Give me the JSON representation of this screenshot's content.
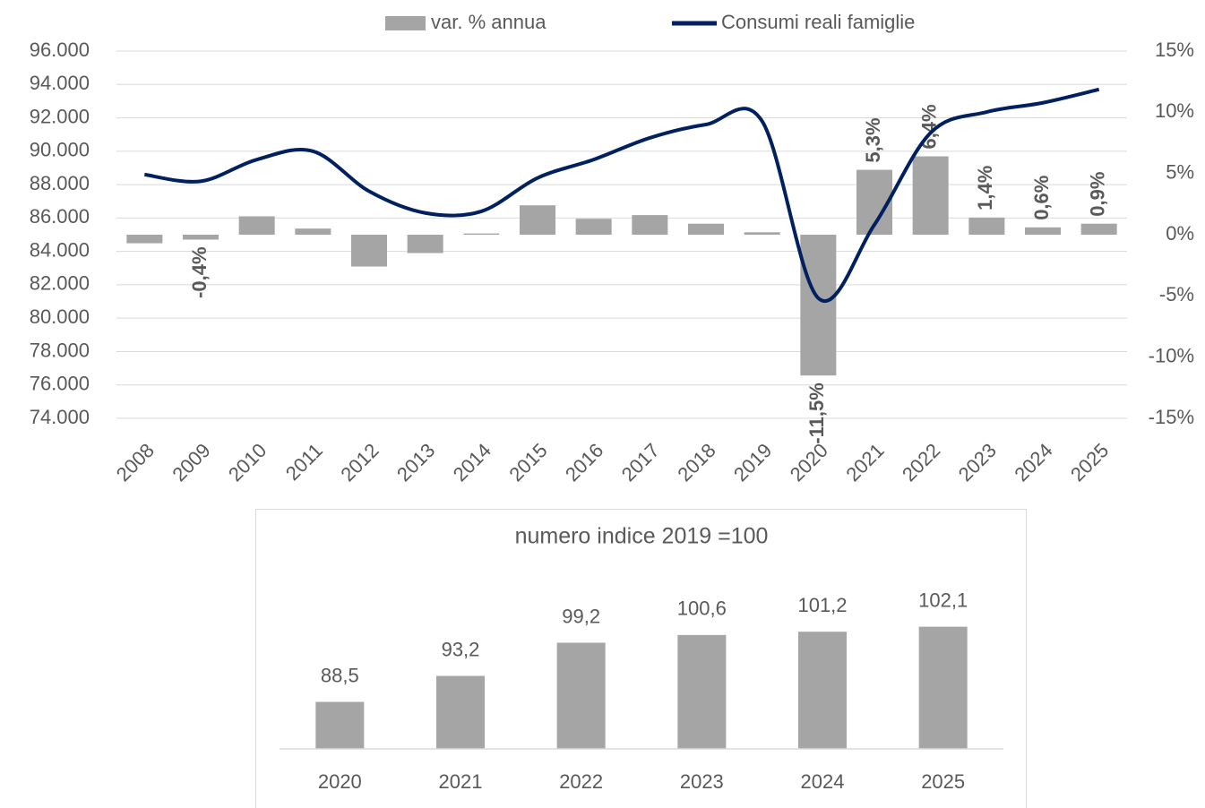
{
  "chart_data": [
    {
      "type": "combo",
      "categories": [
        "2008",
        "2009",
        "2010",
        "2011",
        "2012",
        "2013",
        "2014",
        "2015",
        "2016",
        "2017",
        "2018",
        "2019",
        "2020",
        "2021",
        "2022",
        "2023",
        "2024",
        "2025"
      ],
      "series": [
        {
          "name": "var. % annua",
          "type": "bar",
          "axis": "y2",
          "color": "#a5a5a5",
          "values": [
            -0.7,
            -0.4,
            1.5,
            0.5,
            -2.6,
            -1.5,
            0.1,
            2.4,
            1.3,
            1.6,
            0.9,
            0.2,
            -11.5,
            5.3,
            6.4,
            1.4,
            0.6,
            0.9
          ],
          "value_labels": [
            null,
            "-0,4%",
            null,
            null,
            null,
            null,
            null,
            null,
            null,
            null,
            null,
            null,
            "-11,5%",
            "5,3%",
            "6,4%",
            "1,4%",
            "0,6%",
            "0,9%"
          ]
        },
        {
          "name": "Consumi reali famiglie",
          "type": "line",
          "color": "#002060",
          "values": [
            88600,
            88200,
            89500,
            90000,
            87600,
            86300,
            86400,
            88400,
            89500,
            90800,
            91600,
            91800,
            81200,
            85600,
            91100,
            92350,
            92900,
            93700
          ]
        }
      ],
      "ylim": [
        74000,
        96000
      ],
      "yticks": [
        {
          "value": 74000,
          "label": "74.000"
        },
        {
          "value": 76000,
          "label": "76.000"
        },
        {
          "value": 78000,
          "label": "78.000"
        },
        {
          "value": 80000,
          "label": "80.000"
        },
        {
          "value": 82000,
          "label": "82.000"
        },
        {
          "value": 84000,
          "label": "84.000"
        },
        {
          "value": 86000,
          "label": "86.000"
        },
        {
          "value": 88000,
          "label": "88.000"
        },
        {
          "value": 90000,
          "label": "90.000"
        },
        {
          "value": 92000,
          "label": "92.000"
        },
        {
          "value": 94000,
          "label": "94.000"
        },
        {
          "value": 96000,
          "label": "96.000"
        }
      ],
      "y2lim": [
        -15,
        15
      ],
      "y2ticks": [
        {
          "value": -15,
          "label": "-15%"
        },
        {
          "value": -10,
          "label": "-10%"
        },
        {
          "value": -5,
          "label": "-5%"
        },
        {
          "value": 0,
          "label": "0%"
        },
        {
          "value": 5,
          "label": "5%"
        },
        {
          "value": 10,
          "label": "10%"
        },
        {
          "value": 15,
          "label": "15%"
        }
      ],
      "grid": true,
      "legend": "top"
    },
    {
      "type": "bar",
      "title": "numero indice 2019 =100",
      "categories": [
        "2020",
        "2021",
        "2022",
        "2023",
        "2024",
        "2025"
      ],
      "values": [
        88.5,
        93.2,
        99.2,
        100.6,
        101.2,
        102.1
      ],
      "value_labels": [
        "88,5",
        "93,2",
        "99,2",
        "100,6",
        "101,2",
        "102,1"
      ],
      "color": "#a5a5a5",
      "ylim": [
        80,
        115
      ]
    }
  ]
}
